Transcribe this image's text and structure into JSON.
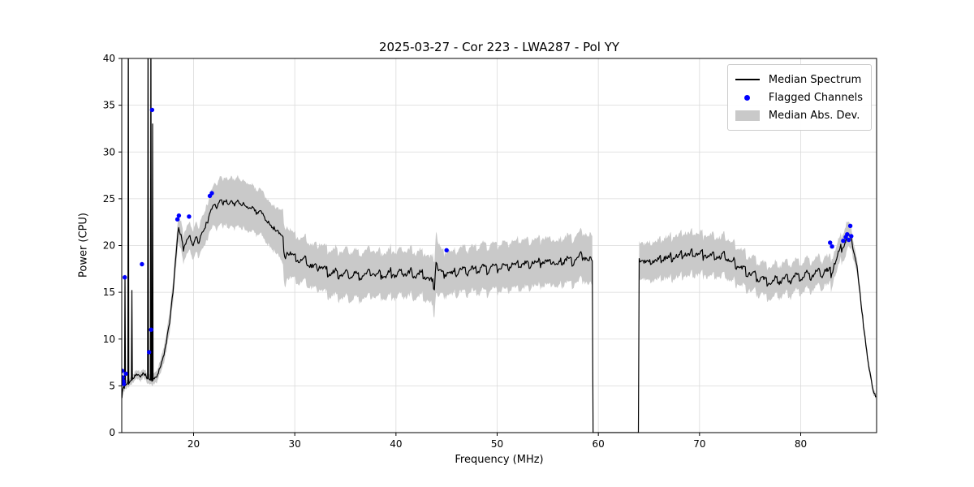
{
  "chart_data": {
    "type": "line",
    "title": "2025-03-27 - Cor 223 - LWA287 - Pol YY",
    "xlabel": "Frequency (MHz)",
    "ylabel": "Power (CPU)",
    "xlim": [
      12.9,
      87.5
    ],
    "ylim": [
      0,
      40
    ],
    "xticks": [
      20,
      30,
      40,
      50,
      60,
      70,
      80
    ],
    "yticks": [
      0,
      5,
      10,
      15,
      20,
      25,
      30,
      35,
      40
    ],
    "grid": true,
    "colors": {
      "line": "#000000",
      "marker": "#0000ff",
      "band": "#c9c9c9",
      "grid": "#dadada",
      "axes": "#000000"
    },
    "legend": {
      "position": "upper right",
      "entries": [
        {
          "label": "Median Spectrum",
          "type": "line",
          "color": "#000000"
        },
        {
          "label": "Flagged Channels",
          "type": "marker",
          "color": "#0000ff"
        },
        {
          "label": "Median Abs. Dev.",
          "type": "patch",
          "color": "#c9c9c9"
        }
      ]
    },
    "zero_gap": [
      59.4,
      64.0
    ],
    "median_spectrum": [
      [
        12.92,
        3.7
      ],
      [
        13.0,
        4.6
      ],
      [
        13.2,
        5.0
      ],
      [
        13.4,
        5.2
      ],
      [
        13.7,
        5.4
      ],
      [
        14.0,
        5.8
      ],
      [
        14.3,
        6.2
      ],
      [
        14.6,
        6.0
      ],
      [
        15.0,
        6.3
      ],
      [
        15.3,
        6.0
      ],
      [
        15.6,
        5.8
      ],
      [
        16.0,
        5.6
      ],
      [
        16.4,
        6.2
      ],
      [
        16.8,
        7.2
      ],
      [
        17.2,
        9.0
      ],
      [
        17.6,
        11.5
      ],
      [
        18.0,
        15.5
      ],
      [
        18.3,
        19.5
      ],
      [
        18.5,
        22.0
      ],
      [
        18.7,
        21.3
      ],
      [
        19.0,
        19.6
      ],
      [
        19.3,
        20.6
      ],
      [
        19.6,
        21.0
      ],
      [
        19.9,
        20.0
      ],
      [
        20.2,
        21.0
      ],
      [
        20.5,
        20.3
      ],
      [
        20.8,
        21.2
      ],
      [
        21.1,
        22.0
      ],
      [
        21.4,
        22.6
      ],
      [
        21.7,
        23.6
      ],
      [
        22.0,
        24.6
      ],
      [
        22.3,
        24.1
      ],
      [
        22.6,
        25.0
      ],
      [
        22.9,
        24.4
      ],
      [
        23.2,
        24.9
      ],
      [
        23.5,
        24.4
      ],
      [
        23.8,
        24.8
      ],
      [
        24.1,
        24.3
      ],
      [
        24.4,
        24.8
      ],
      [
        24.7,
        24.2
      ],
      [
        25.0,
        24.6
      ],
      [
        25.4,
        23.9
      ],
      [
        25.8,
        24.2
      ],
      [
        26.2,
        23.5
      ],
      [
        26.6,
        23.8
      ],
      [
        27.0,
        23.0
      ],
      [
        27.4,
        22.5
      ],
      [
        27.8,
        22.0
      ],
      [
        28.2,
        21.6
      ],
      [
        28.6,
        21.2
      ],
      [
        28.85,
        21.0
      ],
      [
        28.95,
        18.9
      ],
      [
        29.3,
        19.4
      ],
      [
        29.7,
        19.0
      ],
      [
        30.1,
        18.7
      ],
      [
        30.5,
        18.4
      ],
      [
        31.0,
        18.6
      ],
      [
        31.5,
        17.9
      ],
      [
        32.0,
        17.6
      ],
      [
        32.5,
        17.9
      ],
      [
        33.0,
        17.3
      ],
      [
        33.5,
        17.0
      ],
      [
        34.0,
        17.2
      ],
      [
        34.5,
        16.9
      ],
      [
        35.0,
        17.1
      ],
      [
        35.5,
        16.8
      ],
      [
        36.0,
        17.0
      ],
      [
        36.5,
        16.7
      ],
      [
        37.0,
        16.9
      ],
      [
        37.5,
        17.2
      ],
      [
        38.0,
        16.8
      ],
      [
        38.5,
        17.0
      ],
      [
        39.0,
        16.7
      ],
      [
        39.5,
        17.1
      ],
      [
        40.0,
        16.8
      ],
      [
        40.5,
        17.2
      ],
      [
        41.0,
        16.9
      ],
      [
        41.5,
        17.1
      ],
      [
        42.0,
        16.8
      ],
      [
        42.5,
        17.0
      ],
      [
        43.0,
        16.6
      ],
      [
        43.5,
        16.1
      ],
      [
        43.8,
        15.6
      ],
      [
        43.95,
        18.6
      ],
      [
        44.2,
        17.4
      ],
      [
        44.6,
        17.0
      ],
      [
        45.0,
        17.2
      ],
      [
        45.5,
        16.9
      ],
      [
        46.0,
        17.2
      ],
      [
        46.5,
        17.4
      ],
      [
        47.0,
        17.1
      ],
      [
        47.5,
        17.5
      ],
      [
        48.0,
        17.2
      ],
      [
        48.5,
        17.7
      ],
      [
        49.0,
        17.4
      ],
      [
        49.5,
        17.8
      ],
      [
        50.0,
        17.5
      ],
      [
        50.5,
        17.9
      ],
      [
        51.0,
        17.6
      ],
      [
        51.5,
        18.1
      ],
      [
        52.0,
        17.8
      ],
      [
        52.5,
        18.2
      ],
      [
        53.0,
        17.9
      ],
      [
        53.5,
        18.3
      ],
      [
        54.0,
        18.0
      ],
      [
        54.5,
        18.4
      ],
      [
        55.0,
        18.1
      ],
      [
        55.5,
        18.3
      ],
      [
        56.0,
        18.0
      ],
      [
        56.5,
        18.3
      ],
      [
        57.0,
        18.6
      ],
      [
        57.5,
        18.2
      ],
      [
        58.0,
        18.7
      ],
      [
        58.5,
        18.9
      ],
      [
        59.0,
        18.5
      ],
      [
        59.35,
        18.2
      ],
      [
        64.05,
        18.6
      ],
      [
        64.5,
        18.3
      ],
      [
        65.0,
        18.1
      ],
      [
        65.5,
        18.5
      ],
      [
        66.0,
        18.2
      ],
      [
        66.5,
        18.8
      ],
      [
        67.0,
        18.5
      ],
      [
        67.5,
        19.0
      ],
      [
        68.0,
        18.7
      ],
      [
        68.5,
        19.2
      ],
      [
        69.0,
        18.9
      ],
      [
        69.5,
        19.3
      ],
      [
        70.0,
        19.0
      ],
      [
        70.5,
        19.1
      ],
      [
        71.0,
        18.7
      ],
      [
        71.5,
        19.0
      ],
      [
        72.0,
        18.6
      ],
      [
        72.5,
        18.9
      ],
      [
        73.0,
        18.4
      ],
      [
        73.5,
        18.1
      ],
      [
        74.0,
        17.6
      ],
      [
        74.5,
        17.3
      ],
      [
        75.0,
        17.0
      ],
      [
        75.5,
        16.7
      ],
      [
        76.0,
        16.5
      ],
      [
        76.5,
        16.3
      ],
      [
        77.0,
        16.1
      ],
      [
        77.5,
        16.4
      ],
      [
        78.0,
        16.2
      ],
      [
        78.5,
        16.6
      ],
      [
        79.0,
        16.3
      ],
      [
        79.5,
        16.8
      ],
      [
        80.0,
        16.5
      ],
      [
        80.5,
        17.0
      ],
      [
        81.0,
        16.7
      ],
      [
        81.5,
        17.2
      ],
      [
        82.0,
        16.9
      ],
      [
        82.5,
        17.3
      ],
      [
        83.0,
        17.1
      ],
      [
        83.4,
        18.3
      ],
      [
        83.8,
        19.2
      ],
      [
        84.1,
        19.8
      ],
      [
        84.4,
        20.6
      ],
      [
        84.7,
        21.0
      ],
      [
        85.0,
        20.4
      ],
      [
        85.3,
        19.3
      ],
      [
        85.6,
        17.4
      ],
      [
        85.9,
        14.5
      ],
      [
        86.2,
        11.5
      ],
      [
        86.5,
        8.8
      ],
      [
        86.8,
        6.5
      ],
      [
        87.1,
        4.8
      ],
      [
        87.4,
        3.7
      ]
    ],
    "mad_halfwidth": [
      [
        12.92,
        0.4
      ],
      [
        14.0,
        0.45
      ],
      [
        15.0,
        0.5
      ],
      [
        16.0,
        0.5
      ],
      [
        17.0,
        0.8
      ],
      [
        18.0,
        1.2
      ],
      [
        18.6,
        1.5
      ],
      [
        19.5,
        1.5
      ],
      [
        20.5,
        1.6
      ],
      [
        21.5,
        1.9
      ],
      [
        22.5,
        2.5
      ],
      [
        23.5,
        2.6
      ],
      [
        24.5,
        2.6
      ],
      [
        25.5,
        2.5
      ],
      [
        26.5,
        2.4
      ],
      [
        27.5,
        2.4
      ],
      [
        28.5,
        2.5
      ],
      [
        29.0,
        3.1
      ],
      [
        29.5,
        2.5
      ],
      [
        30.5,
        2.4
      ],
      [
        31.5,
        2.3
      ],
      [
        32.5,
        2.4
      ],
      [
        33.5,
        2.5
      ],
      [
        34.5,
        2.5
      ],
      [
        35.5,
        2.6
      ],
      [
        36.5,
        2.5
      ],
      [
        37.5,
        2.5
      ],
      [
        38.5,
        2.4
      ],
      [
        39.5,
        2.5
      ],
      [
        40.5,
        2.4
      ],
      [
        41.5,
        2.5
      ],
      [
        42.5,
        2.4
      ],
      [
        43.5,
        2.5
      ],
      [
        43.95,
        3.3
      ],
      [
        44.5,
        2.4
      ],
      [
        45.5,
        2.3
      ],
      [
        46.5,
        2.4
      ],
      [
        47.5,
        2.4
      ],
      [
        48.5,
        2.5
      ],
      [
        49.5,
        2.4
      ],
      [
        50.5,
        2.5
      ],
      [
        51.5,
        2.5
      ],
      [
        52.5,
        2.6
      ],
      [
        53.5,
        2.5
      ],
      [
        54.5,
        2.5
      ],
      [
        55.5,
        2.4
      ],
      [
        56.5,
        2.5
      ],
      [
        57.5,
        2.5
      ],
      [
        58.5,
        2.6
      ],
      [
        59.3,
        2.6
      ],
      [
        64.1,
        1.9
      ],
      [
        65.0,
        2.0
      ],
      [
        66.0,
        2.1
      ],
      [
        67.0,
        2.2
      ],
      [
        68.0,
        2.3
      ],
      [
        69.0,
        2.3
      ],
      [
        70.0,
        2.2
      ],
      [
        71.0,
        2.2
      ],
      [
        72.0,
        2.1
      ],
      [
        73.0,
        2.1
      ],
      [
        74.0,
        1.9
      ],
      [
        75.0,
        1.8
      ],
      [
        76.0,
        1.7
      ],
      [
        77.0,
        1.7
      ],
      [
        78.0,
        1.7
      ],
      [
        79.0,
        1.7
      ],
      [
        80.0,
        1.6
      ],
      [
        81.0,
        1.6
      ],
      [
        82.0,
        1.5
      ],
      [
        83.0,
        1.5
      ],
      [
        84.0,
        1.3
      ],
      [
        84.5,
        1.6
      ],
      [
        85.0,
        1.1
      ],
      [
        85.5,
        0.8
      ],
      [
        86.0,
        0.6
      ],
      [
        86.5,
        0.5
      ],
      [
        87.0,
        0.4
      ],
      [
        87.4,
        0.3
      ]
    ],
    "rfi_spikes": [
      [
        13.22,
        16.8
      ],
      [
        13.55,
        46
      ],
      [
        13.9,
        15.2
      ],
      [
        15.5,
        46
      ],
      [
        15.78,
        46
      ],
      [
        15.95,
        33
      ]
    ],
    "flagged_channels": [
      [
        12.95,
        6.6
      ],
      [
        13.0,
        5.9
      ],
      [
        13.05,
        5.5
      ],
      [
        13.1,
        5.2
      ],
      [
        13.2,
        16.6
      ],
      [
        13.3,
        6.3
      ],
      [
        14.9,
        18.0
      ],
      [
        15.6,
        8.6
      ],
      [
        15.8,
        11.0
      ],
      [
        15.9,
        34.5
      ],
      [
        18.4,
        22.8
      ],
      [
        18.55,
        23.2
      ],
      [
        19.55,
        23.1
      ],
      [
        21.6,
        25.3
      ],
      [
        21.8,
        25.6
      ],
      [
        45.0,
        19.5
      ],
      [
        82.9,
        20.3
      ],
      [
        83.1,
        19.9
      ],
      [
        84.2,
        20.5
      ],
      [
        84.45,
        20.9
      ],
      [
        84.6,
        21.2
      ],
      [
        84.75,
        20.6
      ],
      [
        84.9,
        22.1
      ],
      [
        85.0,
        21.0
      ]
    ],
    "noise": {
      "seed": 11,
      "amplitude": 0.22,
      "sawtooth": {
        "amplitude": 0.45,
        "period": 1.05,
        "regions": [
          [
            29.0,
            59.35
          ],
          [
            64.05,
            85.0
          ]
        ]
      }
    }
  }
}
